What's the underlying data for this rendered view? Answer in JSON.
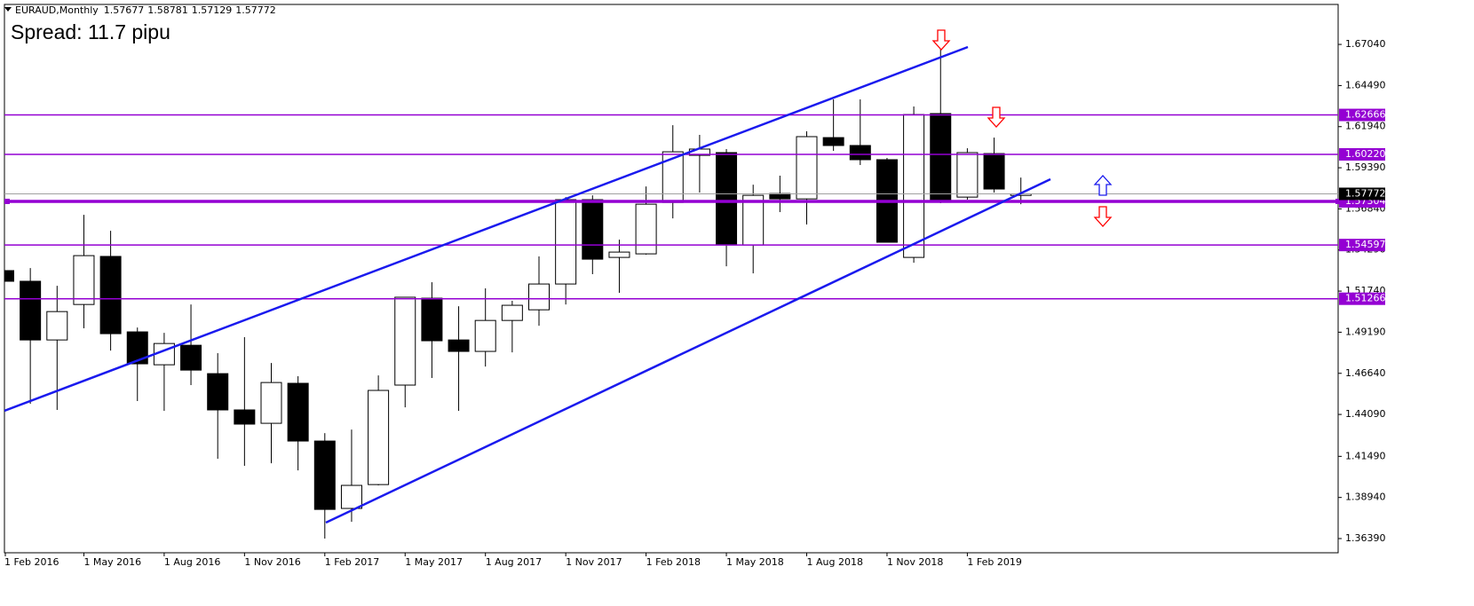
{
  "chart_data": {
    "type": "candlestick",
    "symbol": "EURAUD,Monthly",
    "spread": "Spread: 11.7 pipu",
    "categories": [
      "1 Feb 2016",
      null,
      null,
      "1 May 2016",
      null,
      null,
      "1 Aug 2016",
      null,
      null,
      "1 Nov 2016",
      null,
      null,
      "1 Feb 2017",
      null,
      null,
      "1 May 2017",
      null,
      null,
      "1 Aug 2017",
      null,
      null,
      "1 Nov 2017",
      null,
      null,
      "1 Feb 2018",
      null,
      null,
      "1 May 2018",
      null,
      null,
      "1 Aug 2018",
      null,
      null,
      "1 Nov 2018",
      null,
      null,
      "1 Feb 2019",
      null,
      null
    ],
    "open": [
      1.5301,
      1.5235,
      1.4871,
      1.5091,
      1.5389,
      1.4921,
      1.4717,
      1.4838,
      1.4662,
      1.4437,
      1.4354,
      1.4602,
      1.4244,
      1.3826,
      1.3974,
      1.4591,
      1.513,
      1.4871,
      1.48,
      1.4992,
      1.5058,
      1.5218,
      1.5741,
      1.5383,
      1.5405,
      1.5724,
      1.6016,
      1.6033,
      1.546,
      1.5779,
      1.5746,
      1.6126,
      1.6077,
      1.5989,
      1.5383,
      1.6275,
      1.5757,
      1.6027,
      1.57677
    ],
    "high": [
      1.5328,
      1.5317,
      1.5207,
      1.5647,
      1.5548,
      1.4948,
      1.4915,
      1.5091,
      1.4789,
      1.4888,
      1.4728,
      1.4646,
      1.4293,
      1.4315,
      1.4651,
      1.5136,
      1.5229,
      1.508,
      1.5191,
      1.5114,
      1.5389,
      1.5757,
      1.5768,
      1.5493,
      1.5823,
      1.6203,
      1.6143,
      1.6055,
      1.5834,
      1.589,
      1.6165,
      1.6363,
      1.6363,
      1.6,
      1.6319,
      1.6677,
      1.606,
      1.6126,
      1.58781
    ],
    "low": [
      1.5191,
      1.4475,
      1.4437,
      1.4943,
      1.4805,
      1.4492,
      1.4431,
      1.4591,
      1.4134,
      1.409,
      1.4106,
      1.4062,
      1.3639,
      1.3743,
      1.3969,
      1.4453,
      1.4635,
      1.4431,
      1.4706,
      1.4794,
      1.4959,
      1.5091,
      1.5279,
      1.5163,
      1.54,
      1.5625,
      1.5785,
      1.5328,
      1.5284,
      1.5664,
      1.5587,
      1.6044,
      1.5956,
      1.5477,
      1.535,
      1.5719,
      1.5741,
      1.5785,
      1.57129
    ],
    "close": [
      1.5235,
      1.4871,
      1.5047,
      1.5394,
      1.491,
      1.4723,
      1.4849,
      1.4684,
      1.4437,
      1.4349,
      1.4607,
      1.4244,
      1.382,
      1.3969,
      1.4558,
      1.5136,
      1.4866,
      1.48,
      1.4992,
      1.5086,
      1.5218,
      1.5741,
      1.5372,
      1.5416,
      1.5713,
      1.6038,
      1.6055,
      1.546,
      1.5768,
      1.5746,
      1.6132,
      1.6077,
      1.5989,
      1.5477,
      1.6269,
      1.5741,
      1.6033,
      1.5807,
      1.57772
    ],
    "up_color": "#ffffff",
    "down_color": "#000000",
    "ylim": [
      1.3551,
      1.6952
    ],
    "yticks": [
      {
        "value": 1.6704,
        "label": "1.67040"
      },
      {
        "value": 1.6449,
        "label": "1.64490"
      },
      {
        "value": 1.6194,
        "label": "1.61940"
      },
      {
        "value": 1.5939,
        "label": "1.59390"
      },
      {
        "value": 1.5684,
        "label": "1.56840"
      },
      {
        "value": 1.5429,
        "label": "1.54290"
      },
      {
        "value": 1.5174,
        "label": "1.51740"
      },
      {
        "value": 1.4919,
        "label": "1.49190"
      },
      {
        "value": 1.4664,
        "label": "1.46640"
      },
      {
        "value": 1.4409,
        "label": "1.44090"
      },
      {
        "value": 1.4149,
        "label": "1.41490"
      },
      {
        "value": 1.3894,
        "label": "1.38940"
      },
      {
        "value": 1.3639,
        "label": "1.36390"
      }
    ],
    "levels": [
      {
        "value": 1.62666,
        "color": "#9400d3",
        "line_width": 1.5
      },
      {
        "value": 1.6022,
        "label": "1.60220",
        "color": "#9400d3",
        "line_width": 1.5
      },
      {
        "value": 1.57304,
        "color": "#9400d3",
        "line_width": 3.5
      },
      {
        "value": 1.54597,
        "color": "#9400d3",
        "line_width": 1.5
      },
      {
        "value": 1.51266,
        "color": "#9400d3",
        "line_width": 1.5
      }
    ],
    "price_line_color": "#a0a0a0"
  }
}
